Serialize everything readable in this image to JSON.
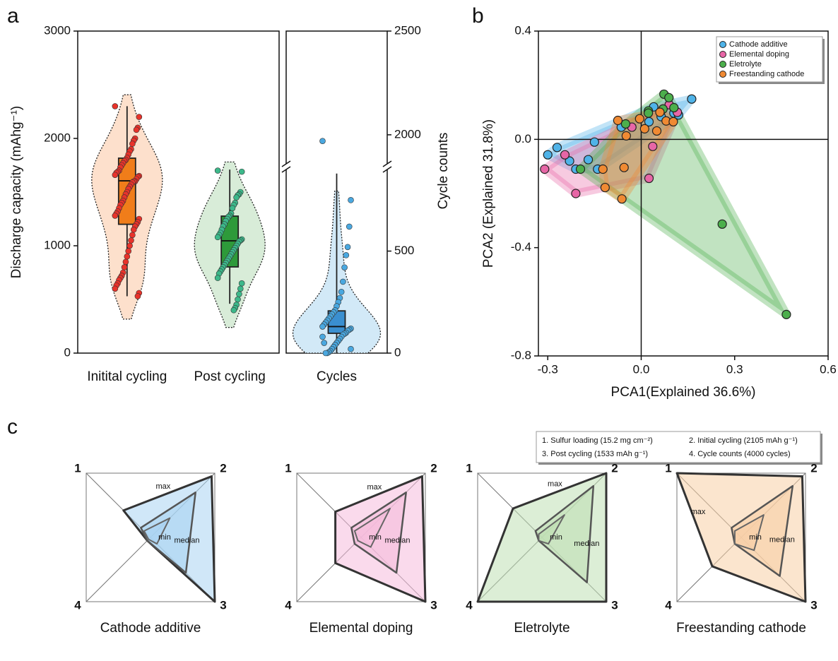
{
  "panels": [
    "a",
    "b",
    "c"
  ],
  "radar_key": [
    "1. Sulfur loading (15.2 mg cm⁻²)",
    "2. Initial cycling  (2105 mAh g⁻¹)",
    "3. Post cycling   (1533 mAh g⁻¹)",
    "4. Cycle counts  (4000 cycles)"
  ],
  "chart_data": [
    {
      "type": "violin",
      "ylabel": "Discharge capacity (mAhg⁻¹)",
      "y2label": "Cycle counts",
      "categories": [
        "Initital cycling",
        "Post cycling",
        "Cycles"
      ],
      "ylim": [
        0,
        3000
      ],
      "yticks": [
        0,
        1000,
        2000,
        3000
      ],
      "y2lim": [
        0,
        2500
      ],
      "y2ticks": [
        0,
        500,
        2000,
        2500
      ],
      "y2break": [
        900,
        1860
      ],
      "series": [
        {
          "color": "#e8332b",
          "fill": "#fde0cc",
          "box_color": "#f07d1a",
          "box": {
            "whisker_low": 530,
            "q1": 1200,
            "median": 1605,
            "q3": 1816,
            "whisker_high": 2300
          },
          "values": [
            2300,
            2200,
            2100,
            2080,
            2000,
            1980,
            1950,
            1900,
            1880,
            1850,
            1820,
            1800,
            1790,
            1770,
            1750,
            1730,
            1700,
            1690,
            1680,
            1660,
            1650,
            1640,
            1620,
            1600,
            1600,
            1590,
            1570,
            1550,
            1530,
            1500,
            1480,
            1450,
            1420,
            1400,
            1380,
            1350,
            1320,
            1300,
            1280,
            1250,
            1220,
            1200,
            1180,
            1150,
            1100,
            1050,
            1000,
            950,
            900,
            850,
            800,
            750,
            720,
            700,
            680,
            650,
            630,
            600,
            560,
            530
          ]
        },
        {
          "color": "#3cb88a",
          "fill": "#d8ecd8",
          "box_color": "#2e9a3a",
          "box": {
            "whisker_low": 460,
            "q1": 803,
            "median": 1046,
            "q3": 1276,
            "whisker_high": 1710
          },
          "values": [
            1700,
            1690,
            1500,
            1480,
            1470,
            1450,
            1400,
            1380,
            1350,
            1300,
            1280,
            1270,
            1250,
            1230,
            1200,
            1180,
            1150,
            1120,
            1100,
            1080,
            1060,
            1050,
            1040,
            1020,
            1000,
            980,
            960,
            940,
            920,
            900,
            880,
            860,
            840,
            820,
            800,
            780,
            760,
            740,
            700,
            650,
            600,
            550,
            500,
            450,
            420,
            400
          ]
        },
        {
          "color": "#4aa8e0",
          "fill": "#d2e9f7",
          "box_color": "#3a8fd0",
          "axis": "y2",
          "box": {
            "whisker_low": 0,
            "q1": 97,
            "median": 130,
            "q3": 207,
            "whisker_high": 880
          },
          "values": [
            1970,
            750,
            620,
            520,
            480,
            420,
            350,
            300,
            270,
            250,
            230,
            210,
            200,
            190,
            180,
            170,
            160,
            150,
            140,
            130,
            120,
            115,
            110,
            100,
            95,
            90,
            80,
            70,
            60,
            50,
            40,
            30,
            20,
            10,
            5,
            0,
            0,
            50,
            80,
            20
          ]
        }
      ]
    },
    {
      "type": "scatter",
      "xlabel": "PCA1(Explained 36.6%)",
      "ylabel": "PCA2 (Explained 31.8%)",
      "xlim": [
        -0.33,
        0.6
      ],
      "ylim": [
        -0.8,
        0.4
      ],
      "xticks": [
        -0.3,
        {
          "value": 0,
          "label": "0.0"
        },
        0.3,
        0.6
      ],
      "yticks": [
        -0.8,
        -0.4,
        {
          "value": 0,
          "label": "0.0"
        },
        0.4
      ],
      "legend": "top-right",
      "hull": true,
      "series": [
        {
          "name": "Cathode additive",
          "color": "#4fb3e8",
          "x": [
            0.162,
            -0.3,
            -0.27,
            -0.23,
            -0.21,
            -0.17,
            -0.15,
            -0.14,
            -0.064,
            0.025,
            0.064,
            0.105,
            0.12,
            0.04
          ],
          "y": [
            0.149,
            -0.057,
            -0.03,
            -0.08,
            -0.11,
            -0.075,
            -0.01,
            -0.11,
            0.045,
            0.065,
            0.084,
            0.097,
            0.09,
            0.12
          ]
        },
        {
          "name": "Elemental doping",
          "color": "#e766a6",
          "x": [
            -0.31,
            -0.245,
            -0.21,
            0.037,
            0.025,
            0.09,
            0.116,
            -0.03
          ],
          "y": [
            -0.11,
            -0.057,
            -0.2,
            -0.026,
            -0.144,
            0.128,
            0.1,
            0.045
          ]
        },
        {
          "name": "Eletrolyte",
          "color": "#4caf4c",
          "x": [
            0.466,
            0.26,
            -0.195,
            -0.05,
            0.023,
            0.073,
            0.089,
            0.105,
            0.07,
            0.023
          ],
          "y": [
            -0.647,
            -0.313,
            -0.11,
            0.057,
            0.105,
            0.167,
            0.154,
            0.117,
            0.112,
            0.097
          ]
        },
        {
          "name": "Freestanding cathode",
          "color": "#f08a33",
          "x": [
            -0.123,
            -0.116,
            -0.062,
            -0.055,
            -0.075,
            -0.048,
            -0.005,
            0.05,
            0.08,
            0.103,
            0.06,
            0.011
          ],
          "y": [
            -0.11,
            -0.178,
            -0.22,
            -0.104,
            0.07,
            0.013,
            0.076,
            0.031,
            0.068,
            0.065,
            0.1,
            0.039
          ]
        }
      ]
    },
    {
      "type": "radar",
      "title": "Cathode additive",
      "axes": [
        "1",
        "2",
        "3",
        "4"
      ],
      "rlim": [
        0,
        1
      ],
      "color": "#a9d3f2",
      "series": [
        {
          "name": "max",
          "values": [
            0.42,
            0.95,
            1.0,
            0.05
          ]
        },
        {
          "name": "median",
          "values": [
            0.15,
            0.7,
            0.55,
            0.05
          ]
        },
        {
          "name": "min",
          "values": [
            0.1,
            0.3,
            0.1,
            0.03
          ]
        }
      ]
    },
    {
      "type": "radar",
      "title": "Elemental doping",
      "axes": [
        "1",
        "2",
        "3",
        "4"
      ],
      "rlim": [
        0,
        1
      ],
      "color": "#f5bcdc",
      "series": [
        {
          "name": "max",
          "values": [
            0.4,
            0.95,
            1.0,
            0.4
          ]
        },
        {
          "name": "median",
          "values": [
            0.15,
            0.7,
            0.55,
            0.1
          ]
        },
        {
          "name": "min",
          "values": [
            0.1,
            0.45,
            0.15,
            0.05
          ]
        }
      ]
    },
    {
      "type": "radar",
      "title": "Eletrolyte",
      "axes": [
        "1",
        "2",
        "3",
        "4"
      ],
      "rlim": [
        0,
        1
      ],
      "color": "#bfe0b4",
      "series": [
        {
          "name": "max",
          "values": [
            0.45,
            1.0,
            1.0,
            1.0
          ]
        },
        {
          "name": "median",
          "values": [
            0.1,
            0.8,
            0.7,
            0.05
          ]
        },
        {
          "name": "min",
          "values": [
            0.05,
            0.35,
            0.1,
            0.05
          ]
        }
      ]
    },
    {
      "type": "radar",
      "title": "Freestanding cathode",
      "axes": [
        "1",
        "2",
        "3",
        "4"
      ],
      "rlim": [
        0,
        1
      ],
      "color": "#f8cfa6",
      "series": [
        {
          "name": "max",
          "values": [
            1.0,
            0.95,
            1.0,
            0.45
          ]
        },
        {
          "name": "median",
          "values": [
            0.15,
            0.8,
            0.6,
            0.1
          ]
        },
        {
          "name": "min",
          "values": [
            0.1,
            0.35,
            0.2,
            0.1
          ]
        }
      ]
    }
  ]
}
